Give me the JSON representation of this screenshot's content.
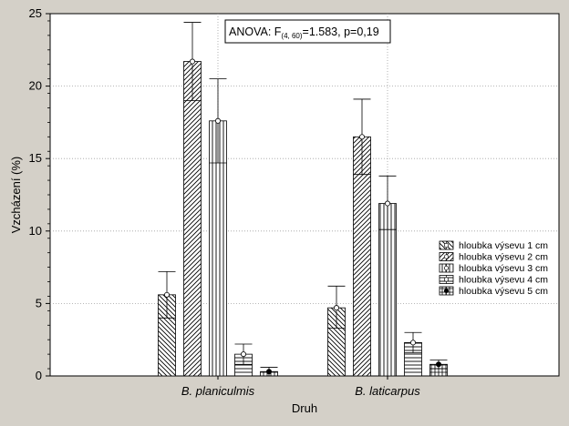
{
  "chart_data": {
    "type": "bar",
    "xlabel": "Druh",
    "ylabel": "Vzcházení (%)",
    "ylim": [
      0,
      25
    ],
    "yticks": [
      0,
      5,
      10,
      15,
      20,
      25
    ],
    "grid": true,
    "legend_position": "right",
    "categories": [
      "B. planiculmis",
      "B. laticarpus"
    ],
    "annotation": {
      "prefix": "ANOVA: F",
      "subscript": "(4, 60)",
      "suffix": "=1.583, p=0,19"
    },
    "series": [
      {
        "name": "hloubka výsevu 1 cm",
        "pattern": "diag-down",
        "values": [
          5.6,
          4.7
        ],
        "upper": [
          7.2,
          6.2
        ],
        "lower": [
          4.0,
          3.3
        ]
      },
      {
        "name": "hloubka výsevu 2 cm",
        "pattern": "diag-up",
        "values": [
          21.7,
          16.5
        ],
        "upper": [
          24.4,
          19.1
        ],
        "lower": [
          19.0,
          13.9
        ]
      },
      {
        "name": "hloubka výsevu 3 cm",
        "pattern": "vertical",
        "values": [
          17.6,
          11.9
        ],
        "upper": [
          20.5,
          13.8
        ],
        "lower": [
          14.7,
          10.1
        ]
      },
      {
        "name": "hloubka výsevu 4 cm",
        "pattern": "horizontal",
        "values": [
          1.5,
          2.3
        ],
        "upper": [
          2.2,
          3.0
        ],
        "lower": [
          0.8,
          1.6
        ]
      },
      {
        "name": "hloubka výsevu 5 cm",
        "pattern": "cross",
        "values": [
          0.3,
          0.8
        ],
        "upper": [
          0.6,
          1.1
        ],
        "lower": [
          0.0,
          0.5
        ]
      }
    ],
    "colors": {
      "background": "#d4d0c8",
      "plot": "#ffffff",
      "grid": "#a0a0a0",
      "marks": "#000000"
    }
  }
}
